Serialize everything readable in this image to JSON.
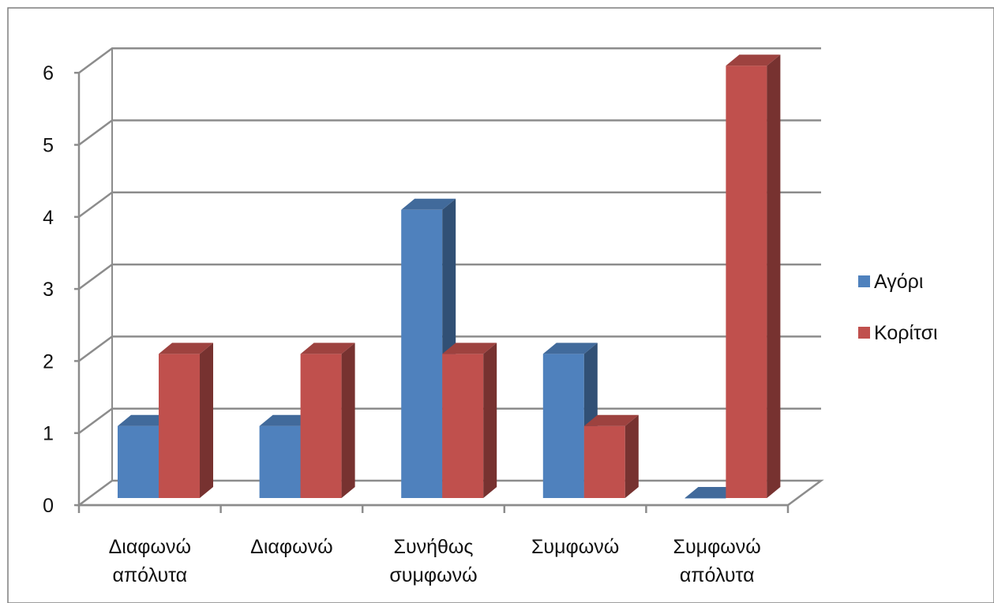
{
  "chart_data": {
    "type": "bar",
    "style": "3d-clustered-column",
    "categories": [
      [
        "Διαφωνώ",
        "απόλυτα"
      ],
      [
        "Διαφωνώ"
      ],
      [
        "Συνήθως",
        "συμφωνώ"
      ],
      [
        "Συμφωνώ"
      ],
      [
        "Συμφωνώ",
        "απόλυτα"
      ]
    ],
    "series": [
      {
        "name": "Αγόρι",
        "values": [
          1,
          1,
          4,
          2,
          0
        ],
        "color": "#4F81BD"
      },
      {
        "name": "Κορίτσι",
        "values": [
          2,
          2,
          2,
          1,
          6
        ],
        "color": "#C0504D"
      }
    ],
    "ylim": [
      0,
      6
    ],
    "yticks": [
      "0",
      "1",
      "2",
      "3",
      "4",
      "5",
      "6"
    ],
    "grid": true,
    "legend": "right",
    "title": "",
    "xlabel": "",
    "ylabel": ""
  }
}
